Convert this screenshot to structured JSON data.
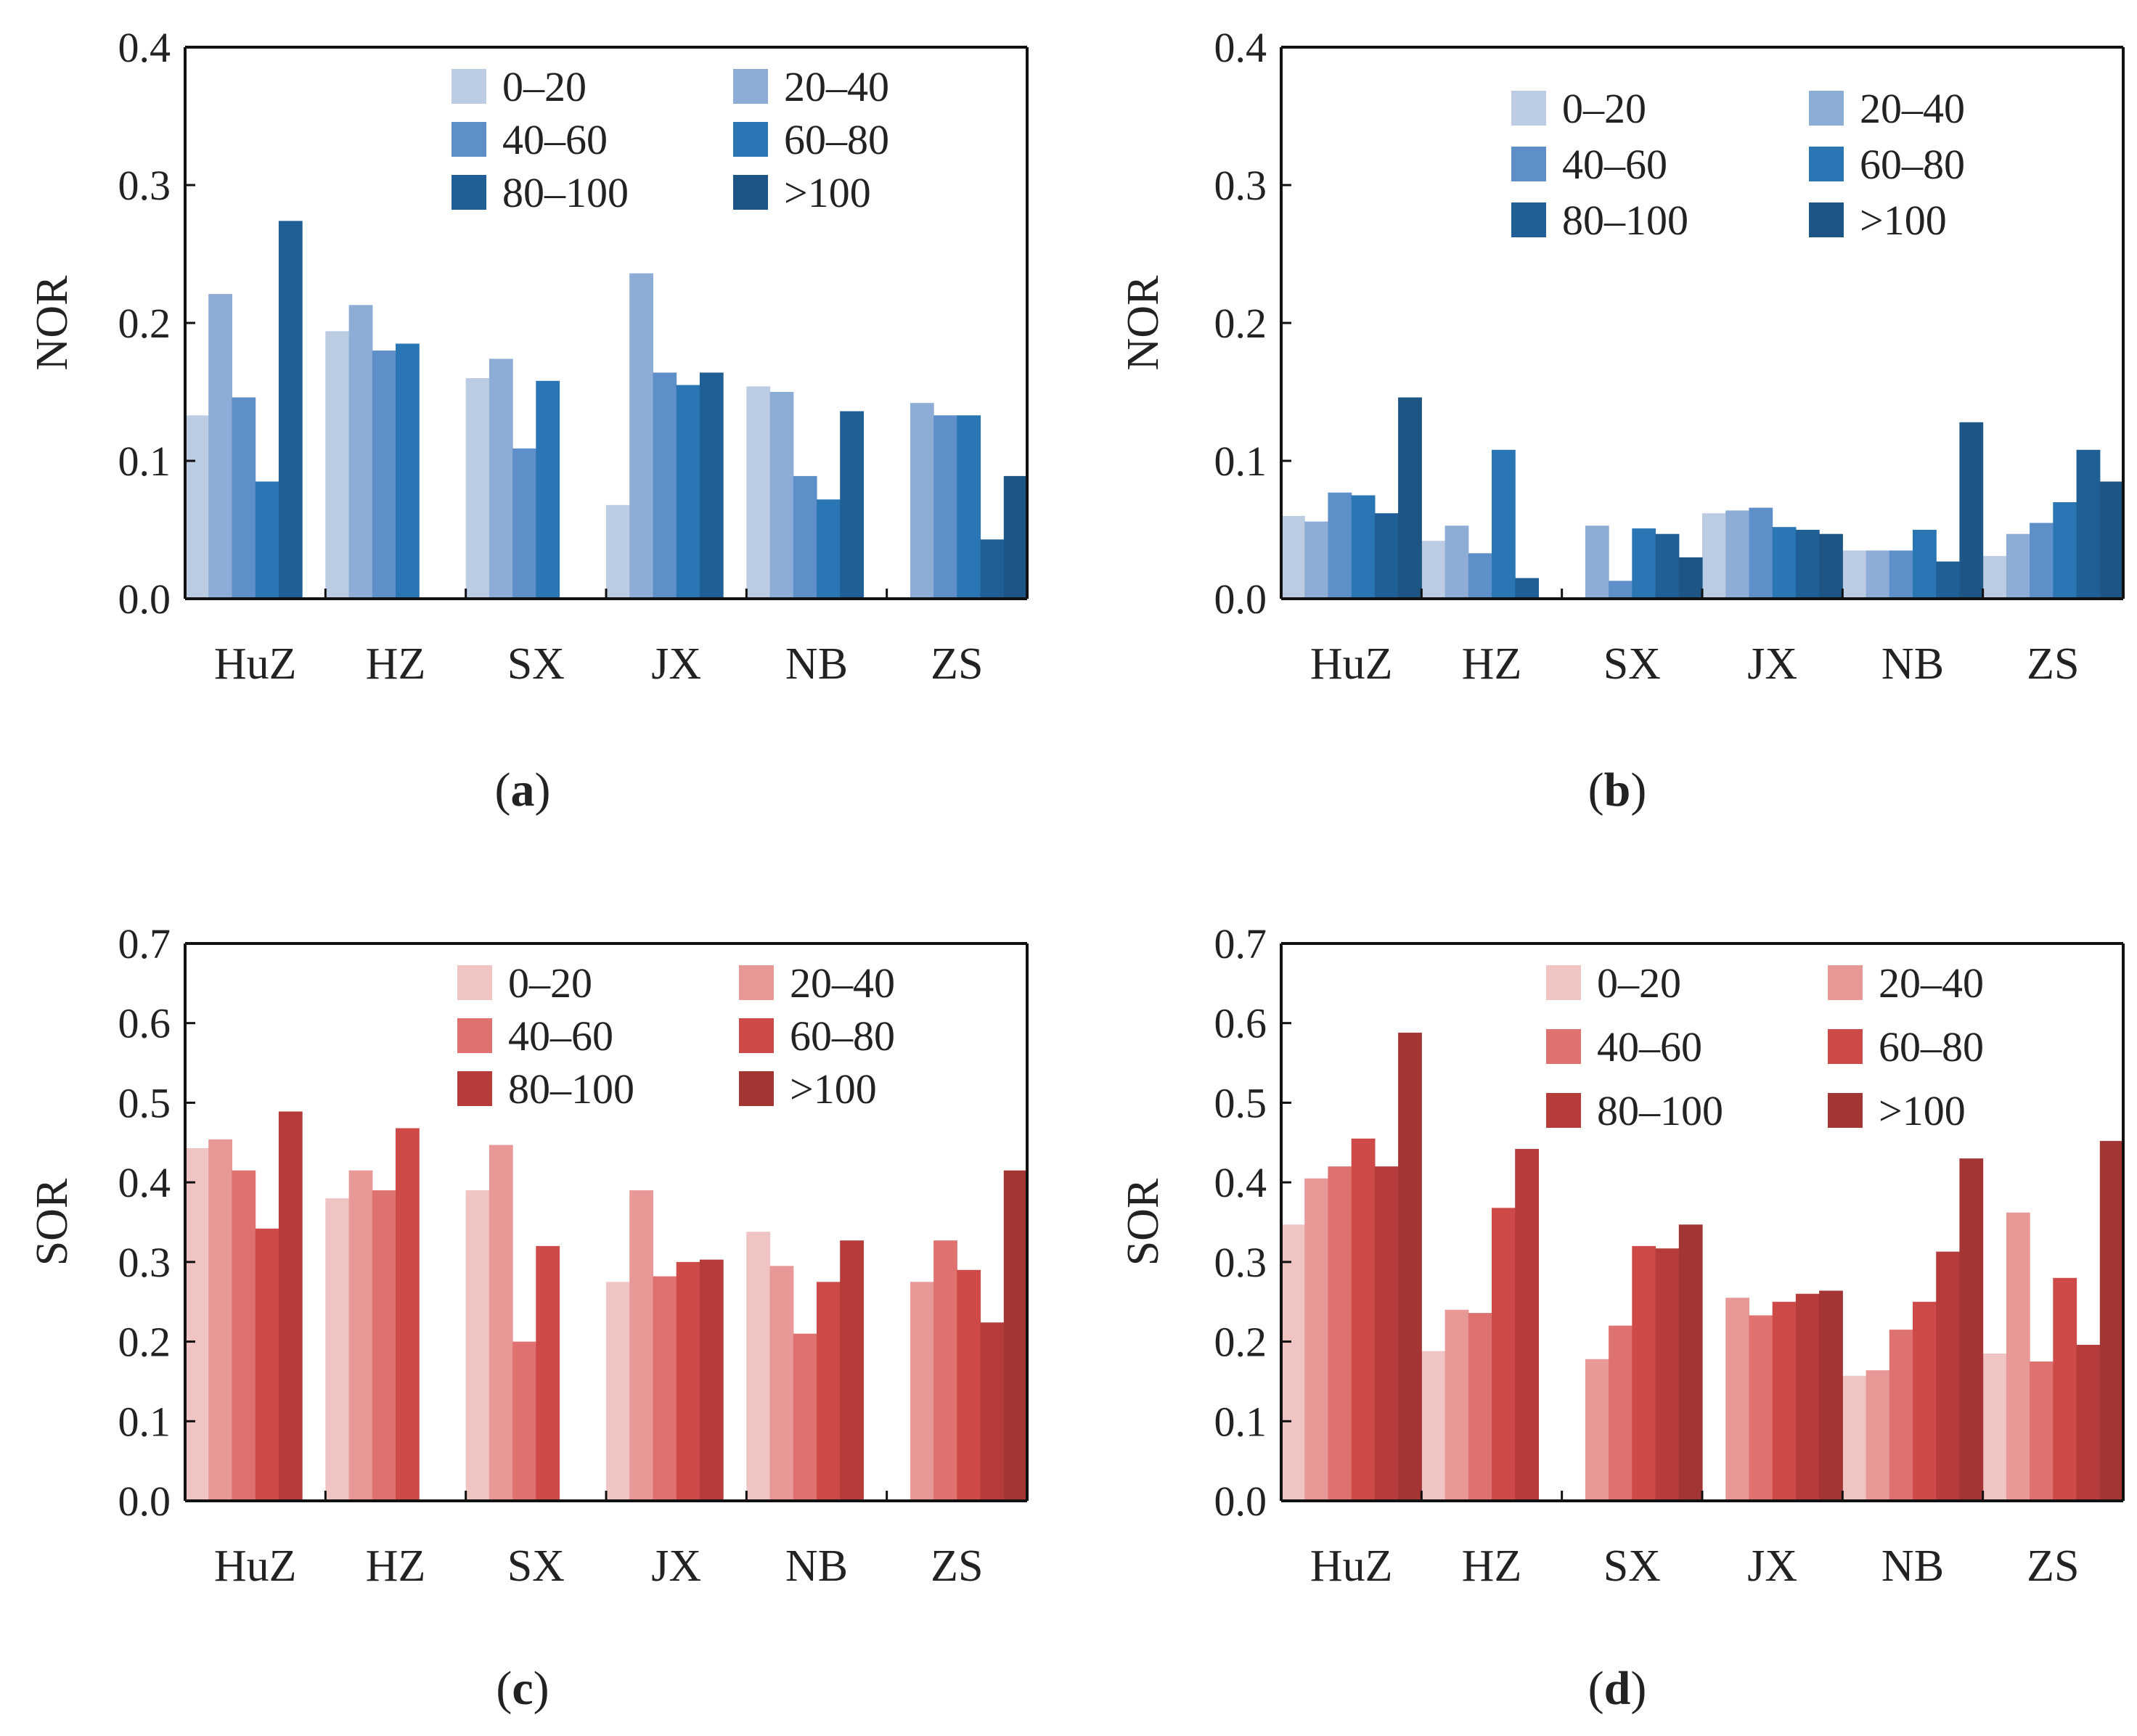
{
  "chart_data": [
    {
      "id": "a",
      "type": "bar",
      "caption": "a",
      "ylabel": "NOR",
      "ylim": [
        0,
        0.4
      ],
      "yticks": [
        "0.0",
        "0.1",
        "0.2",
        "0.3",
        "0.4"
      ],
      "categories": [
        "HuZ",
        "HZ",
        "SX",
        "JX",
        "NB",
        "ZS"
      ],
      "series": [
        {
          "name": "0–20",
          "color": "#bccce3",
          "values": [
            0.133,
            0.194,
            0.16,
            0.068,
            0.154,
            0
          ]
        },
        {
          "name": "20–40",
          "color": "#8eadd6",
          "values": [
            0.221,
            0.213,
            0.174,
            0.236,
            0.15,
            0.142
          ]
        },
        {
          "name": "40–60",
          "color": "#5f8fc9",
          "values": [
            0.146,
            0.18,
            0.109,
            0.164,
            0.089,
            0.133
          ]
        },
        {
          "name": "60–80",
          "color": "#2a76b5",
          "values": [
            0.085,
            0.185,
            0.158,
            0.155,
            0.072,
            0.133
          ]
        },
        {
          "name": "80–100",
          "color": "#1f5f95",
          "values": [
            0.274,
            0,
            0,
            0.164,
            0.136,
            0.043
          ]
        },
        {
          "name": ">100",
          "color": "#1d5585",
          "values": [
            0,
            0,
            0,
            0,
            0,
            0.089
          ]
        }
      ]
    },
    {
      "id": "b",
      "type": "bar",
      "caption": "b",
      "ylabel": "NOR",
      "ylim": [
        0,
        0.4
      ],
      "yticks": [
        "0.0",
        "0.1",
        "0.2",
        "0.3",
        "0.4"
      ],
      "categories": [
        "HuZ",
        "HZ",
        "SX",
        "JX",
        "NB",
        "ZS"
      ],
      "series": [
        {
          "name": "0–20",
          "color": "#bccce3",
          "values": [
            0.06,
            0.042,
            0,
            0.062,
            0.035,
            0.031
          ]
        },
        {
          "name": "20–40",
          "color": "#8eadd6",
          "values": [
            0.056,
            0.053,
            0.053,
            0.064,
            0.035,
            0.047
          ]
        },
        {
          "name": "40–60",
          "color": "#5f8fc9",
          "values": [
            0.077,
            0.033,
            0.013,
            0.066,
            0.035,
            0.055
          ]
        },
        {
          "name": "60–80",
          "color": "#2a76b5",
          "values": [
            0.075,
            0.108,
            0.051,
            0.052,
            0.05,
            0.07
          ]
        },
        {
          "name": "80–100",
          "color": "#1f5f95",
          "values": [
            0.062,
            0.015,
            0.047,
            0.05,
            0.027,
            0.108
          ]
        },
        {
          "name": ">100",
          "color": "#1d5585",
          "values": [
            0.146,
            0,
            0.03,
            0.047,
            0.128,
            0.085
          ]
        }
      ]
    },
    {
      "id": "c",
      "type": "bar",
      "caption": "c",
      "ylabel": "SOR",
      "ylim": [
        0,
        0.7
      ],
      "yticks": [
        "0.0",
        "0.1",
        "0.2",
        "0.3",
        "0.4",
        "0.5",
        "0.6",
        "0.7"
      ],
      "categories": [
        "HuZ",
        "HZ",
        "SX",
        "JX",
        "NB",
        "ZS"
      ],
      "series": [
        {
          "name": "0–20",
          "color": "#efc4c3",
          "values": [
            0.443,
            0.38,
            0.39,
            0.275,
            0.338,
            0
          ]
        },
        {
          "name": "20–40",
          "color": "#e79897",
          "values": [
            0.454,
            0.415,
            0.447,
            0.39,
            0.295,
            0.275
          ]
        },
        {
          "name": "40–60",
          "color": "#df7270",
          "values": [
            0.415,
            0.39,
            0.2,
            0.282,
            0.21,
            0.327
          ]
        },
        {
          "name": "60–80",
          "color": "#cd4a49",
          "values": [
            0.342,
            0.468,
            0.32,
            0.3,
            0.275,
            0.29
          ]
        },
        {
          "name": "80–100",
          "color": "#b63b3b",
          "values": [
            0.489,
            0,
            0,
            0.303,
            0.327,
            0.224
          ]
        },
        {
          "name": ">100",
          "color": "#a33534",
          "values": [
            0,
            0,
            0,
            0,
            0,
            0.415
          ]
        }
      ]
    },
    {
      "id": "d",
      "type": "bar",
      "caption": "d",
      "ylabel": "SOR",
      "ylim": [
        0,
        0.7
      ],
      "yticks": [
        "0.0",
        "0.1",
        "0.2",
        "0.3",
        "0.4",
        "0.5",
        "0.6",
        "0.7"
      ],
      "categories": [
        "HuZ",
        "HZ",
        "SX",
        "JX",
        "NB",
        "ZS"
      ],
      "series": [
        {
          "name": "0–20",
          "color": "#efc4c3",
          "values": [
            0.347,
            0.188,
            0,
            0,
            0.157,
            0.185
          ]
        },
        {
          "name": "20–40",
          "color": "#e79897",
          "values": [
            0.405,
            0.24,
            0.178,
            0.255,
            0.164,
            0.362
          ]
        },
        {
          "name": "40–60",
          "color": "#df7270",
          "values": [
            0.42,
            0.236,
            0.22,
            0.233,
            0.215,
            0.175
          ]
        },
        {
          "name": "60–80",
          "color": "#cd4a49",
          "values": [
            0.455,
            0.368,
            0.32,
            0.25,
            0.25,
            0.28
          ]
        },
        {
          "name": "80–100",
          "color": "#b63b3b",
          "values": [
            0.42,
            0.442,
            0.317,
            0.26,
            0.313,
            0.196
          ]
        },
        {
          "name": ">100",
          "color": "#a33534",
          "values": [
            0.588,
            0,
            0.347,
            0.264,
            0.43,
            0.452
          ]
        }
      ]
    }
  ]
}
